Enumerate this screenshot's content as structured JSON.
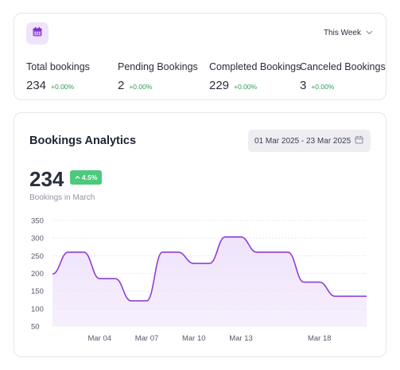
{
  "header": {
    "period_label": "This Week"
  },
  "stats": [
    {
      "label": "Total bookings",
      "value": "234",
      "change": "+0.00%"
    },
    {
      "label": "Pending Bookings",
      "value": "2",
      "change": "+0.00%"
    },
    {
      "label": "Completed Bookings",
      "value": "229",
      "change": "+0.00%"
    },
    {
      "label": "Canceled Bookings",
      "value": "3",
      "change": "+0.00%"
    }
  ],
  "analytics": {
    "title": "Bookings Analytics",
    "date_range": "01 Mar 2025 - 23 Mar 2025",
    "total": "234",
    "growth": "4.5%",
    "sub_label": "Bookings in March"
  },
  "colors": {
    "accent": "#8e3fd6",
    "area_fill": "#efe3fb",
    "positive": "#2f9e58",
    "badge_green": "#4cc97a"
  },
  "chart_data": {
    "type": "area",
    "x": [
      1,
      2,
      3,
      4,
      5,
      6,
      7,
      8,
      9,
      10,
      11,
      12,
      13,
      14,
      15,
      16,
      17,
      18,
      19,
      20,
      21
    ],
    "x_tick_values": [
      4,
      7,
      10,
      13,
      18
    ],
    "x_tick_labels": [
      "Mar 04",
      "Mar 07",
      "Mar 10",
      "Mar 13",
      "Mar 18"
    ],
    "values": [
      198,
      260,
      260,
      185,
      185,
      122,
      122,
      260,
      260,
      228,
      228,
      303,
      303,
      260,
      260,
      260,
      175,
      175,
      135,
      135,
      135
    ],
    "ylim": [
      50,
      350
    ],
    "y_ticks": [
      50,
      100,
      150,
      200,
      250,
      300,
      350
    ],
    "grid": true
  }
}
